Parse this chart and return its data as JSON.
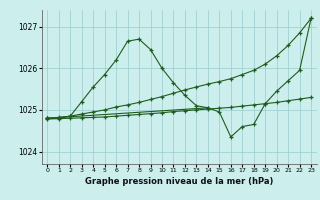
{
  "title": "Graphe pression niveau de la mer (hPa)",
  "bg_color": "#cceeed",
  "grid_color": "#99cccc",
  "line_color": "#1e5c1e",
  "xlim": [
    -0.5,
    23.5
  ],
  "ylim": [
    1023.7,
    1027.4
  ],
  "yticks": [
    1024,
    1025,
    1026,
    1027
  ],
  "xticks": [
    0,
    1,
    2,
    3,
    4,
    5,
    6,
    7,
    8,
    9,
    10,
    11,
    12,
    13,
    14,
    15,
    16,
    17,
    18,
    19,
    20,
    21,
    22,
    23
  ],
  "series": [
    {
      "x": [
        0,
        1,
        2,
        3,
        4,
        5,
        6,
        7,
        8,
        9,
        10,
        11,
        12,
        13,
        14
      ],
      "y": [
        1024.8,
        1024.8,
        1024.85,
        1025.2,
        1025.55,
        1025.85,
        1026.2,
        1026.65,
        1026.7,
        1026.45,
        1026.0,
        1025.65,
        1025.35,
        1025.1,
        1025.05
      ]
    },
    {
      "x": [
        0,
        1,
        2,
        3,
        4,
        5,
        6,
        7,
        8,
        9,
        10,
        11,
        12,
        13,
        14,
        15,
        16,
        17,
        18,
        19,
        20,
        21,
        22,
        23
      ],
      "y": [
        1024.8,
        1024.82,
        1024.85,
        1024.9,
        1024.95,
        1025.0,
        1025.07,
        1025.12,
        1025.18,
        1025.25,
        1025.32,
        1025.4,
        1025.48,
        1025.55,
        1025.62,
        1025.68,
        1025.75,
        1025.85,
        1025.95,
        1026.1,
        1026.3,
        1026.55,
        1026.85,
        1027.2
      ]
    },
    {
      "x": [
        0,
        14,
        15,
        16,
        17,
        18,
        19,
        20,
        21,
        22,
        23
      ],
      "y": [
        1024.8,
        1025.05,
        1024.95,
        1024.35,
        1024.6,
        1024.65,
        1025.15,
        1025.45,
        1025.7,
        1025.95,
        1027.2
      ]
    },
    {
      "x": [
        0,
        1,
        2,
        3,
        4,
        5,
        6,
        7,
        8,
        9,
        10,
        11,
        12,
        13,
        14,
        15,
        16,
        17,
        18,
        19,
        20,
        21,
        22,
        23
      ],
      "y": [
        1024.78,
        1024.79,
        1024.8,
        1024.81,
        1024.82,
        1024.83,
        1024.85,
        1024.87,
        1024.89,
        1024.91,
        1024.93,
        1024.96,
        1024.98,
        1025.0,
        1025.02,
        1025.04,
        1025.06,
        1025.09,
        1025.12,
        1025.15,
        1025.18,
        1025.22,
        1025.26,
        1025.3
      ]
    }
  ]
}
